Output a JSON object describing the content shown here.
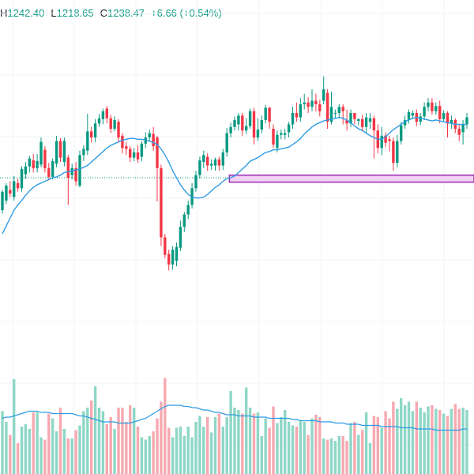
{
  "header": {
    "high_label": "H",
    "high_value": "1242.40",
    "low_label": "L",
    "low_value": "1218.65",
    "close_label": "C",
    "close_value": "1238.47",
    "change": "+6.66",
    "change_pct": "(+0.54%)"
  },
  "colors": {
    "up": "#089981",
    "down": "#F23645",
    "up_volume": "#8ED7C6",
    "down_volume": "#F7A9B0",
    "moving_average": "#2F9BE3",
    "zone_fill": "#F0D3F5",
    "zone_border": "#9C27B0",
    "price_line": "#089981",
    "grid": "#F0F3FA"
  },
  "chart_data": {
    "type": "candlestick",
    "price_range": [
      1050,
      1420
    ],
    "price_line": 1244,
    "zone": {
      "top": 1247,
      "bottom": 1239,
      "from_index": 59
    },
    "candles": [
      [
        1207,
        1228,
        1203,
        1230
      ],
      [
        1218,
        1235,
        1214,
        1238
      ],
      [
        1230,
        1226,
        1222,
        1240
      ],
      [
        1222,
        1240,
        1218,
        1246
      ],
      [
        1238,
        1232,
        1228,
        1243
      ],
      [
        1232,
        1254,
        1228,
        1257
      ],
      [
        1248,
        1257,
        1243,
        1262
      ],
      [
        1257,
        1266,
        1250,
        1269
      ],
      [
        1264,
        1255,
        1250,
        1271
      ],
      [
        1255,
        1263,
        1250,
        1271
      ],
      [
        1259,
        1285,
        1256,
        1290
      ],
      [
        1276,
        1255,
        1250,
        1280
      ],
      [
        1255,
        1245,
        1241,
        1261
      ],
      [
        1245,
        1263,
        1242,
        1266
      ],
      [
        1260,
        1286,
        1256,
        1292
      ],
      [
        1286,
        1267,
        1262,
        1289
      ],
      [
        1262,
        1286,
        1257,
        1290
      ],
      [
        1267,
        1244,
        1213,
        1270
      ],
      [
        1247,
        1255,
        1242,
        1260
      ],
      [
        1255,
        1240,
        1235,
        1262
      ],
      [
        1235,
        1270,
        1233,
        1275
      ],
      [
        1270,
        1277,
        1263,
        1281
      ],
      [
        1275,
        1297,
        1270,
        1317
      ],
      [
        1297,
        1290,
        1284,
        1302
      ],
      [
        1290,
        1306,
        1285,
        1311
      ],
      [
        1306,
        1312,
        1302,
        1317
      ],
      [
        1311,
        1320,
        1305,
        1323
      ],
      [
        1323,
        1312,
        1306,
        1326
      ],
      [
        1312,
        1300,
        1295,
        1316
      ],
      [
        1300,
        1310,
        1297,
        1314
      ],
      [
        1308,
        1290,
        1284,
        1311
      ],
      [
        1292,
        1278,
        1272,
        1295
      ],
      [
        1280,
        1277,
        1270,
        1285
      ],
      [
        1277,
        1267,
        1262,
        1280
      ],
      [
        1267,
        1273,
        1263,
        1278
      ],
      [
        1273,
        1265,
        1261,
        1281
      ],
      [
        1268,
        1283,
        1263,
        1286
      ],
      [
        1283,
        1290,
        1278,
        1296
      ],
      [
        1290,
        1295,
        1285,
        1299
      ],
      [
        1294,
        1280,
        1275,
        1302
      ],
      [
        1290,
        1255,
        1217,
        1292
      ],
      [
        1255,
        1176,
        1166,
        1259
      ],
      [
        1176,
        1156,
        1152,
        1180
      ],
      [
        1157,
        1145,
        1138,
        1162
      ],
      [
        1145,
        1162,
        1139,
        1166
      ],
      [
        1149,
        1165,
        1143,
        1170
      ],
      [
        1164,
        1188,
        1160,
        1195
      ],
      [
        1188,
        1202,
        1182,
        1205
      ],
      [
        1202,
        1213,
        1197,
        1218
      ],
      [
        1213,
        1232,
        1209,
        1238
      ],
      [
        1232,
        1247,
        1228,
        1252
      ],
      [
        1247,
        1264,
        1243,
        1268
      ],
      [
        1262,
        1270,
        1255,
        1275
      ],
      [
        1268,
        1258,
        1252,
        1272
      ],
      [
        1258,
        1260,
        1253,
        1265
      ],
      [
        1258,
        1265,
        1252,
        1267
      ],
      [
        1265,
        1258,
        1252,
        1268
      ],
      [
        1258,
        1273,
        1253,
        1277
      ],
      [
        1273,
        1295,
        1268,
        1301
      ],
      [
        1295,
        1302,
        1290,
        1307
      ],
      [
        1302,
        1310,
        1298,
        1314
      ],
      [
        1305,
        1315,
        1298,
        1318
      ],
      [
        1315,
        1298,
        1292,
        1318
      ],
      [
        1298,
        1303,
        1294,
        1312
      ],
      [
        1303,
        1320,
        1300,
        1323
      ],
      [
        1320,
        1290,
        1282,
        1324
      ],
      [
        1290,
        1299,
        1286,
        1312
      ],
      [
        1299,
        1310,
        1295,
        1315
      ],
      [
        1310,
        1324,
        1306,
        1327
      ],
      [
        1324,
        1308,
        1300,
        1325
      ],
      [
        1300,
        1282,
        1278,
        1305
      ],
      [
        1278,
        1293,
        1273,
        1298
      ],
      [
        1293,
        1295,
        1288,
        1299
      ],
      [
        1293,
        1295,
        1288,
        1300
      ],
      [
        1296,
        1305,
        1290,
        1308
      ],
      [
        1305,
        1318,
        1300,
        1325
      ],
      [
        1318,
        1313,
        1308,
        1330
      ],
      [
        1313,
        1328,
        1308,
        1335
      ],
      [
        1328,
        1330,
        1322,
        1340
      ],
      [
        1330,
        1325,
        1318,
        1336
      ],
      [
        1325,
        1332,
        1320,
        1345
      ],
      [
        1332,
        1328,
        1320,
        1340
      ],
      [
        1328,
        1320,
        1314,
        1333
      ],
      [
        1332,
        1345,
        1328,
        1360
      ],
      [
        1341,
        1308,
        1300,
        1345
      ],
      [
        1308,
        1325,
        1305,
        1342
      ],
      [
        1318,
        1318,
        1312,
        1322
      ],
      [
        1318,
        1325,
        1312,
        1328
      ],
      [
        1325,
        1320,
        1305,
        1328
      ],
      [
        1310,
        1306,
        1298,
        1322
      ],
      [
        1306,
        1318,
        1302,
        1322
      ],
      [
        1318,
        1311,
        1305,
        1318
      ],
      [
        1309,
        1311,
        1304,
        1312
      ],
      [
        1311,
        1302,
        1297,
        1316
      ],
      [
        1302,
        1313,
        1294,
        1318
      ],
      [
        1308,
        1312,
        1300,
        1318
      ],
      [
        1312,
        1298,
        1266,
        1315
      ],
      [
        1298,
        1278,
        1272,
        1305
      ],
      [
        1278,
        1292,
        1270,
        1302
      ],
      [
        1292,
        1284,
        1279,
        1296
      ],
      [
        1288,
        1286,
        1274,
        1292
      ],
      [
        1286,
        1261,
        1252,
        1290
      ],
      [
        1261,
        1286,
        1256,
        1293
      ],
      [
        1286,
        1304,
        1282,
        1308
      ],
      [
        1304,
        1310,
        1300,
        1315
      ],
      [
        1310,
        1319,
        1306,
        1322
      ],
      [
        1315,
        1318,
        1311,
        1321
      ],
      [
        1318,
        1308,
        1303,
        1322
      ],
      [
        1308,
        1314,
        1304,
        1318
      ],
      [
        1314,
        1325,
        1310,
        1330
      ],
      [
        1325,
        1330,
        1320,
        1335
      ],
      [
        1330,
        1320,
        1316,
        1335
      ],
      [
        1320,
        1326,
        1316,
        1330
      ],
      [
        1326,
        1311,
        1306,
        1332
      ],
      [
        1311,
        1318,
        1308,
        1321
      ],
      [
        1318,
        1306,
        1290,
        1320
      ],
      [
        1306,
        1310,
        1300,
        1315
      ],
      [
        1310,
        1300,
        1295,
        1312
      ],
      [
        1300,
        1293,
        1286,
        1305
      ],
      [
        1296,
        1305,
        1282,
        1310
      ],
      [
        1305,
        1313,
        1300,
        1318
      ]
    ],
    "moving_average": [
      1180,
      1189,
      1198,
      1207,
      1213,
      1218,
      1224,
      1229,
      1233,
      1236,
      1238,
      1240,
      1242,
      1244,
      1245,
      1247,
      1250,
      1251,
      1252,
      1253,
      1254,
      1256,
      1258,
      1262,
      1266,
      1270,
      1274,
      1278,
      1281,
      1283,
      1285,
      1287,
      1288,
      1289,
      1289,
      1288,
      1288,
      1287,
      1286,
      1284,
      1282,
      1277,
      1270,
      1262,
      1252,
      1244,
      1236,
      1230,
      1225,
      1222,
      1221,
      1221,
      1222,
      1225,
      1229,
      1233,
      1236,
      1240,
      1243,
      1244,
      1246,
      1250,
      1254,
      1258,
      1263,
      1265,
      1267,
      1270,
      1273,
      1274,
      1276,
      1276,
      1277,
      1278,
      1279,
      1282,
      1285,
      1289,
      1294,
      1298,
      1302,
      1305,
      1307,
      1309,
      1310,
      1311,
      1312,
      1313,
      1312,
      1310,
      1307,
      1303,
      1300,
      1298,
      1295,
      1292,
      1290,
      1288,
      1288,
      1291,
      1295,
      1299,
      1302,
      1305,
      1308,
      1310,
      1312,
      1313,
      1312,
      1311,
      1310,
      1309,
      1310,
      1309,
      1308,
      1307,
      1306,
      1305,
      1305,
      1305,
      1305
    ],
    "volume_range": [
      0,
      100
    ],
    "volumes": [
      53,
      44,
      33,
      80,
      26,
      40,
      42,
      38,
      52,
      52,
      31,
      29,
      51,
      47,
      36,
      56,
      38,
      30,
      30,
      37,
      41,
      53,
      56,
      62,
      74,
      56,
      53,
      42,
      48,
      38,
      56,
      56,
      44,
      58,
      56,
      40,
      31,
      29,
      32,
      36,
      47,
      61,
      81,
      39,
      31,
      39,
      40,
      32,
      40,
      31,
      44,
      49,
      40,
      48,
      35,
      48,
      51,
      40,
      48,
      70,
      56,
      54,
      51,
      73,
      56,
      51,
      52,
      32,
      47,
      39,
      57,
      43,
      48,
      54,
      44,
      41,
      40,
      45,
      44,
      33,
      47,
      50,
      48,
      30,
      29,
      30,
      28,
      32,
      32,
      28,
      43,
      44,
      33,
      37,
      52,
      26,
      49,
      48,
      39,
      53,
      47,
      61,
      55,
      64,
      58,
      61,
      53,
      61,
      56,
      52,
      57,
      58,
      55,
      54,
      51,
      49,
      55,
      59,
      55,
      56,
      54
    ],
    "volume_average": [
      47,
      48,
      48,
      49,
      50,
      51,
      52,
      53,
      53,
      53,
      52,
      52,
      52,
      51,
      51,
      51,
      51,
      51,
      51,
      50,
      49,
      49,
      48,
      47,
      46,
      45,
      44,
      44,
      44,
      44,
      43,
      43,
      43,
      43,
      44,
      45,
      46,
      47,
      49,
      51,
      53,
      55,
      57,
      58,
      58,
      58,
      58,
      57,
      57,
      56,
      56,
      55,
      54,
      54,
      53,
      52,
      52,
      51,
      50,
      50,
      50,
      49,
      49,
      49,
      49,
      48,
      48,
      48,
      48,
      47,
      47,
      47,
      47,
      47,
      47,
      46,
      46,
      45,
      45,
      45,
      45,
      45,
      44,
      44,
      44,
      44,
      43,
      43,
      43,
      42,
      42,
      42,
      42,
      41,
      41,
      41,
      41,
      41,
      40,
      40,
      40,
      40,
      40,
      39,
      39,
      39,
      39,
      38,
      38,
      38,
      38,
      38,
      37,
      37,
      37,
      37,
      37,
      37,
      37,
      38,
      38
    ]
  }
}
